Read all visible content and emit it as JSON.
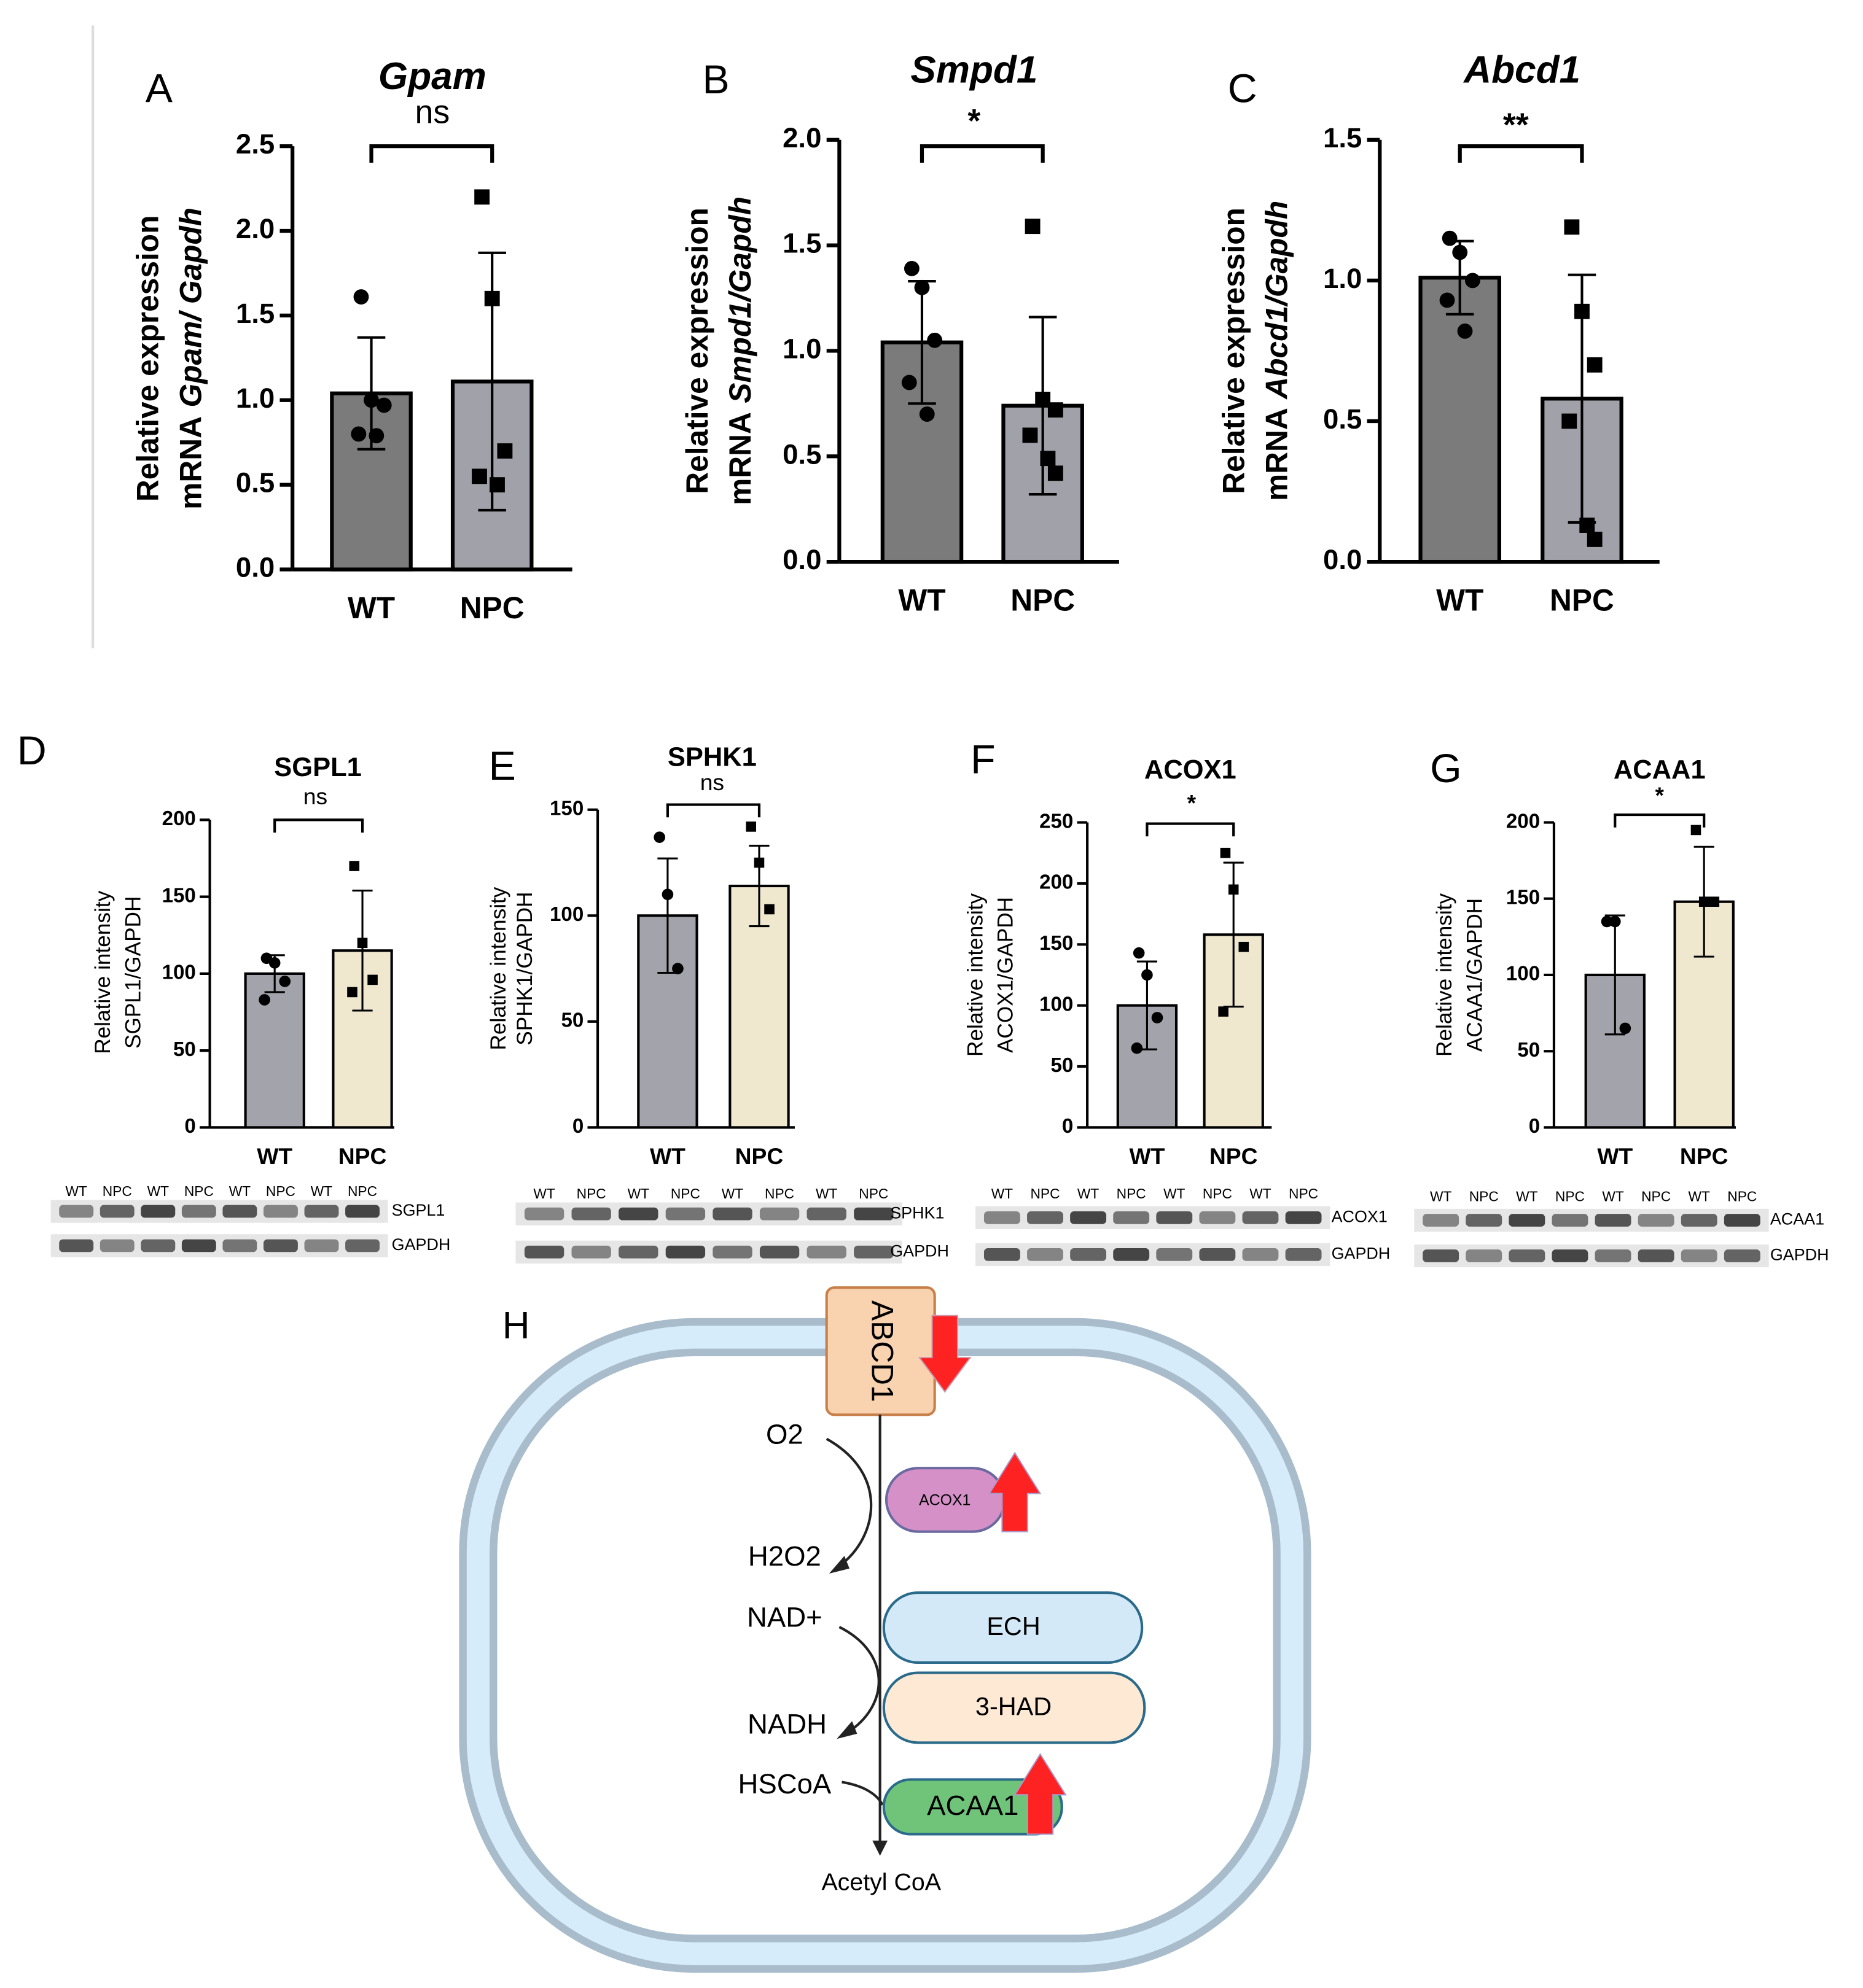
{
  "chart_data": [
    {
      "type": "bar",
      "panel": "A",
      "title": "Gpam",
      "significance": "ns",
      "ylabel": [
        "Relative expression",
        "mRNA",
        "Gpam/ Gapdh"
      ],
      "categories": [
        "WT",
        "NPC"
      ],
      "values": [
        1.04,
        1.11
      ],
      "errors": [
        0.33,
        0.76
      ],
      "points": [
        [
          1.61,
          1.0,
          0.97,
          0.8,
          0.79
        ],
        [
          2.2,
          1.6,
          0.7,
          0.55,
          0.5
        ]
      ],
      "colors": [
        "#7b7b7b",
        "#a1a1aa"
      ],
      "ylim": [
        0,
        2.5
      ],
      "yticks": [
        {
          "value": 0,
          "label": "0.0"
        },
        0.5,
        {
          "value": 1,
          "label": "1.0"
        },
        1.5,
        {
          "value": 2,
          "label": "2.0"
        },
        2.5
      ]
    },
    {
      "type": "bar",
      "panel": "B",
      "title": "Smpd1",
      "significance": "*",
      "ylabel": [
        "Relative expression",
        "mRNA",
        "Smpd1/Gapdh"
      ],
      "categories": [
        "WT",
        "NPC"
      ],
      "values": [
        1.04,
        0.74
      ],
      "errors": [
        0.29,
        0.42
      ],
      "points": [
        [
          1.39,
          1.3,
          1.05,
          0.85,
          0.7
        ],
        [
          1.59,
          0.77,
          0.72,
          0.6,
          0.49,
          0.42
        ]
      ],
      "colors": [
        "#7b7b7b",
        "#a1a1aa"
      ],
      "ylim": [
        0,
        2
      ],
      "yticks": [
        {
          "value": 0,
          "label": "0.0"
        },
        0.5,
        {
          "value": 1,
          "label": "1.0"
        },
        1.5,
        {
          "value": 2,
          "label": "2.0"
        }
      ]
    },
    {
      "type": "bar",
      "panel": "C",
      "title": "Abcd1",
      "significance": "**",
      "ylabel": [
        "Relative expression",
        "mRNA",
        "Abcd1/Gapdh"
      ],
      "categories": [
        "WT",
        "NPC"
      ],
      "values": [
        1.01,
        0.58
      ],
      "errors": [
        0.13,
        0.44
      ],
      "points": [
        [
          1.15,
          1.1,
          1.0,
          0.93,
          0.82
        ],
        [
          1.19,
          0.89,
          0.7,
          0.5,
          0.13,
          0.08
        ]
      ],
      "colors": [
        "#7b7b7b",
        "#a1a1aa"
      ],
      "ylim": [
        0,
        1.5
      ],
      "yticks": [
        {
          "value": 0,
          "label": "0.0"
        },
        0.5,
        {
          "value": 1,
          "label": "1.0"
        },
        1.5
      ]
    },
    {
      "type": "bar",
      "panel": "D",
      "title": "SGPL1",
      "significance": "ns",
      "ylabel": [
        "Relative intensity",
        "SGPL1/GAPDH"
      ],
      "categories": [
        "WT",
        "NPC"
      ],
      "values": [
        100,
        115
      ],
      "errors": [
        12,
        39
      ],
      "points": [
        [
          110,
          107,
          95,
          83
        ],
        [
          170,
          120,
          96,
          88
        ]
      ],
      "colors": [
        "#a3a3ac",
        "#efe8cf"
      ],
      "ylim": [
        0,
        200
      ],
      "yticks": [
        0,
        50,
        100,
        150,
        200
      ],
      "blot": {
        "lanes": [
          "WT",
          "NPC",
          "WT",
          "NPC",
          "WT",
          "NPC",
          "WT",
          "NPC"
        ],
        "bands": [
          "SGPL1",
          "GAPDH"
        ]
      }
    },
    {
      "type": "bar",
      "panel": "E",
      "title": "SPHK1",
      "significance": "ns",
      "ylabel": [
        "Relative intensity",
        "SPHK1/GAPDH"
      ],
      "categories": [
        "WT",
        "NPC"
      ],
      "values": [
        100,
        114
      ],
      "errors": [
        27,
        19
      ],
      "points": [
        [
          137,
          110,
          75
        ],
        [
          142,
          125,
          103
        ]
      ],
      "colors": [
        "#a3a3ac",
        "#efe8cf"
      ],
      "ylim": [
        0,
        150
      ],
      "yticks": [
        0,
        50,
        100,
        150
      ],
      "blot": {
        "lanes": [
          "WT",
          "NPC",
          "WT",
          "NPC",
          "WT",
          "NPC",
          "WT",
          "NPC"
        ],
        "bands": [
          "SPHK1",
          "GAPDH"
        ]
      }
    },
    {
      "type": "bar",
      "panel": "F",
      "title": "ACOX1",
      "significance": "*",
      "ylabel": [
        "Relative intensity",
        "ACOX1/GAPDH"
      ],
      "categories": [
        "WT",
        "NPC"
      ],
      "values": [
        100,
        158
      ],
      "errors": [
        36,
        59
      ],
      "points": [
        [
          143,
          125,
          90,
          65
        ],
        [
          225,
          195,
          148,
          95
        ]
      ],
      "colors": [
        "#a3a3ac",
        "#efe8cf"
      ],
      "ylim": [
        0,
        250
      ],
      "yticks": [
        0,
        50,
        100,
        150,
        200,
        250
      ],
      "blot": {
        "lanes": [
          "WT",
          "NPC",
          "WT",
          "NPC",
          "WT",
          "NPC",
          "WT",
          "NPC"
        ],
        "bands": [
          "ACOX1",
          "GAPDH"
        ]
      }
    },
    {
      "type": "bar",
      "panel": "G",
      "title": "ACAA1",
      "significance": "*",
      "ylabel": [
        "Relative intensity",
        "ACAA1/GAPDH"
      ],
      "categories": [
        "WT",
        "NPC"
      ],
      "values": [
        100,
        148
      ],
      "errors": [
        39,
        36
      ],
      "points": [
        [
          135,
          135,
          65
        ],
        [
          195,
          148,
          148
        ]
      ],
      "colors": [
        "#a3a3ac",
        "#efe8cf"
      ],
      "ylim": [
        0,
        200
      ],
      "yticks": [
        0,
        50,
        100,
        150,
        200
      ],
      "blot": {
        "lanes": [
          "WT",
          "NPC",
          "WT",
          "NPC",
          "WT",
          "NPC",
          "WT",
          "NPC"
        ],
        "bands": [
          "ACAA1",
          "GAPDH"
        ]
      }
    }
  ],
  "diagram": {
    "panel": "H",
    "transporter": "ABCD1",
    "substrates": [
      "O2",
      "H2O2",
      "NAD+",
      "NADH",
      "HSCoA"
    ],
    "enzymes": [
      "ACOX1",
      "ECH",
      "3-HAD",
      "ACAA1"
    ],
    "product": "Acetyl CoA"
  }
}
